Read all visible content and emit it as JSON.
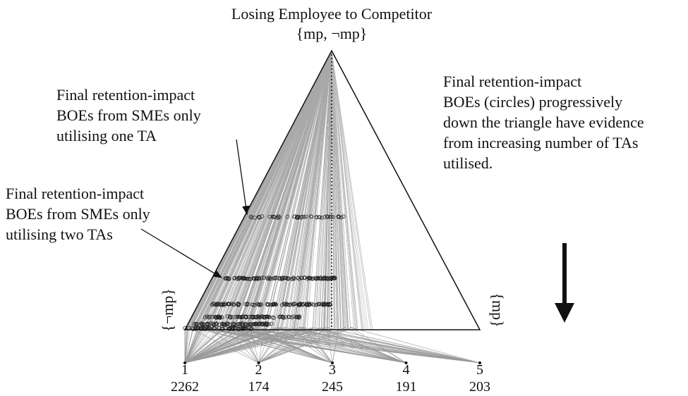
{
  "title": "Losing Employee to Competitor",
  "apex_label": "{mp, ¬mp}",
  "corners": {
    "left": "{¬mp}",
    "right": "{mp}"
  },
  "annotations": [
    {
      "lines": [
        "Final retention-impact",
        "BOEs from SMEs only",
        "utilising one TA"
      ]
    },
    {
      "lines": [
        "Final retention-impact",
        "BOEs from SMEs only",
        "utilising two TAs"
      ]
    }
  ],
  "note": {
    "lines": [
      "Final retention-impact",
      "BOEs (circles) progressively",
      "down the triangle have evidence",
      "from increasing number of TAs",
      "utilised."
    ]
  },
  "nodes": [
    {
      "label": 1,
      "count": 2262
    },
    {
      "label": 2,
      "count": 174
    },
    {
      "label": 3,
      "count": 245
    },
    {
      "label": 4,
      "count": 191
    },
    {
      "label": 5,
      "count": 203
    }
  ]
}
